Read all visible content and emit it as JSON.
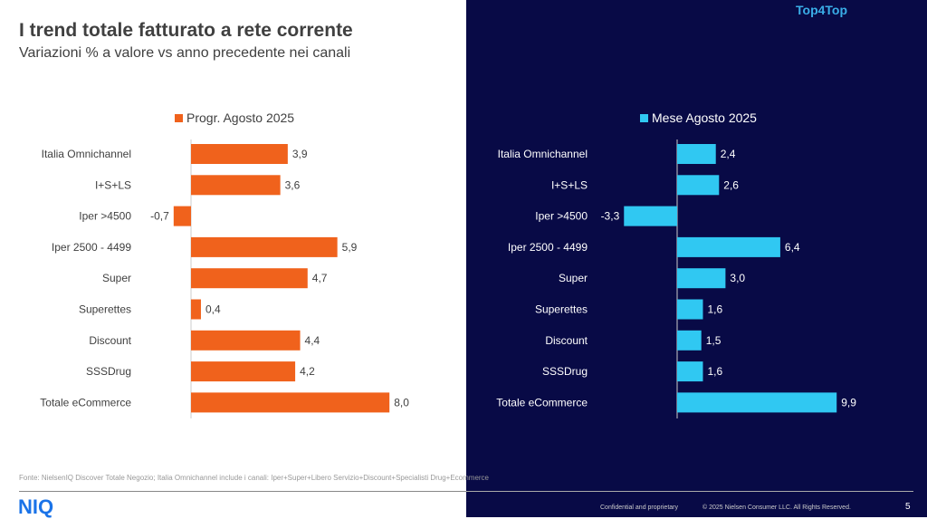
{
  "header": {
    "title": "I trend totale fatturato a rete corrente",
    "subtitle": "Variazioni % a valore vs anno precedente nei canali",
    "brand": "Top4Top"
  },
  "colors": {
    "left_bar": "#f0621c",
    "right_bar": "#30c8f2",
    "dark_bg": "#080a46"
  },
  "chart_data": [
    {
      "type": "bar",
      "orientation": "horizontal",
      "legend": "Progr. Agosto 2025",
      "legend_position": "top",
      "categories": [
        "Italia Omnichannel",
        "I+S+LS",
        "Iper >4500",
        "Iper 2500 - 4499",
        "Super",
        "Superettes",
        "Discount",
        "SSSDrug",
        "Totale eCommerce"
      ],
      "values": [
        3.9,
        3.6,
        -0.7,
        5.9,
        4.7,
        0.4,
        4.4,
        4.2,
        8.0
      ],
      "labels": [
        "3,9",
        "3,6",
        "-0,7",
        "5,9",
        "4,7",
        "0,4",
        "4,4",
        "4,2",
        "8,0"
      ]
    },
    {
      "type": "bar",
      "orientation": "horizontal",
      "legend": "Mese Agosto 2025",
      "legend_position": "top",
      "categories": [
        "Italia Omnichannel",
        "I+S+LS",
        "Iper >4500",
        "Iper 2500 - 4499",
        "Super",
        "Superettes",
        "Discount",
        "SSSDrug",
        "Totale eCommerce"
      ],
      "values": [
        2.4,
        2.6,
        -3.3,
        6.4,
        3.0,
        1.6,
        1.5,
        1.6,
        9.9
      ],
      "labels": [
        "2,4",
        "2,6",
        "-3,3",
        "6,4",
        "3,0",
        "1,6",
        "1,5",
        "1,6",
        "9,9"
      ]
    }
  ],
  "footer": {
    "source": "Fonte: NielsenIQ Discover Totale Negozio; Italia Omnichannel include i canali: Iper+Super+Libero Servizio+Discount+Specialisti Drug+Ecommerce",
    "logo": "NIQ",
    "confidential": "Confidential and proprietary",
    "copyright": "© 2025 Nielsen Consumer LLC. All Rights Reserved.",
    "page": "5"
  }
}
